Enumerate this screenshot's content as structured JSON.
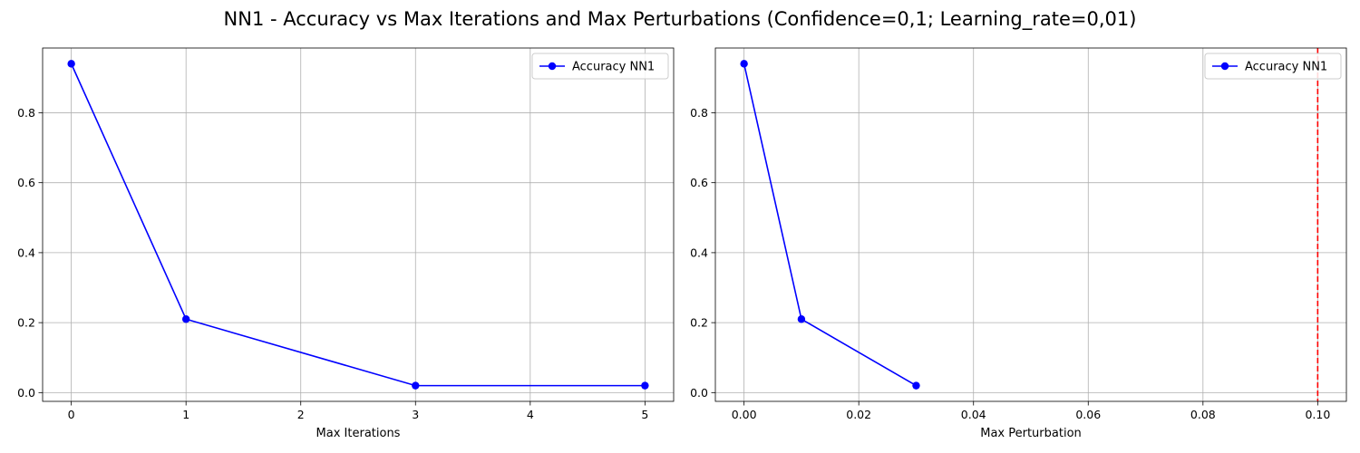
{
  "figure": {
    "title": "NN1 - Accuracy vs Max Iterations and Max Perturbations (Confidence=0,1; Learning_rate=0,01)"
  },
  "colors": {
    "series": "#0000ff",
    "threshold": "#ff0000",
    "grid": "#b0b0b0",
    "axes": "#000000"
  },
  "chart_data": [
    {
      "type": "line",
      "title": "",
      "xlabel": "Max Iterations",
      "ylabel": "",
      "xlim": [
        -0.25,
        5.25
      ],
      "ylim": [
        -0.025,
        0.985
      ],
      "xticks": [
        0,
        1,
        2,
        3,
        4,
        5
      ],
      "xtick_labels": [
        "0",
        "1",
        "2",
        "3",
        "4",
        "5"
      ],
      "yticks": [
        0.0,
        0.2,
        0.4,
        0.6,
        0.8
      ],
      "ytick_labels": [
        "0.0",
        "0.2",
        "0.4",
        "0.6",
        "0.8"
      ],
      "grid": true,
      "legend": "upper-right",
      "series": [
        {
          "name": "Accuracy NN1",
          "marker": "circle",
          "line_style": "solid",
          "x": [
            0,
            1,
            3,
            5
          ],
          "y": [
            0.94,
            0.21,
            0.02,
            0.02
          ]
        }
      ],
      "vlines": []
    },
    {
      "type": "line",
      "title": "",
      "xlabel": "Max Perturbation",
      "ylabel": "",
      "xlim": [
        -0.005,
        0.105
      ],
      "ylim": [
        -0.025,
        0.985
      ],
      "xticks": [
        0.0,
        0.02,
        0.04,
        0.06,
        0.08,
        0.1
      ],
      "xtick_labels": [
        "0.00",
        "0.02",
        "0.04",
        "0.06",
        "0.08",
        "0.10"
      ],
      "yticks": [
        0.0,
        0.2,
        0.4,
        0.6,
        0.8
      ],
      "ytick_labels": [
        "0.0",
        "0.2",
        "0.4",
        "0.6",
        "0.8"
      ],
      "grid": true,
      "legend": "upper-right",
      "series": [
        {
          "name": "Accuracy NN1",
          "marker": "circle",
          "line_style": "solid",
          "x": [
            0.0,
            0.01,
            0.03
          ],
          "y": [
            0.94,
            0.21,
            0.02
          ]
        }
      ],
      "vlines": [
        {
          "x": 0.1,
          "line_style": "dashed"
        }
      ]
    }
  ]
}
